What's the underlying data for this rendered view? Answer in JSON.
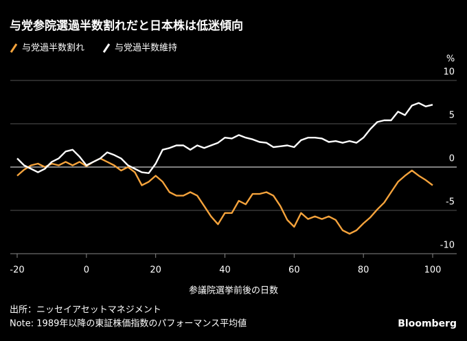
{
  "chart_data": {
    "type": "line",
    "title": "与党参院選過半数割れだと日本株は低迷傾向",
    "x_label": "参議院選挙前後の日数",
    "y_unit": "%",
    "source": "出所：ニッセイアセットマネジメント",
    "note": "Note: 1989年以降の東証株価指数のパフォーマンス平均値",
    "brand": "Bloomberg",
    "x": [
      -20,
      -18,
      -16,
      -14,
      -12,
      -10,
      -8,
      -6,
      -4,
      -2,
      0,
      2,
      4,
      6,
      8,
      10,
      12,
      14,
      16,
      18,
      20,
      22,
      24,
      26,
      28,
      30,
      32,
      34,
      36,
      38,
      40,
      42,
      44,
      46,
      48,
      50,
      52,
      54,
      56,
      58,
      60,
      62,
      64,
      66,
      68,
      70,
      72,
      74,
      76,
      78,
      80,
      82,
      84,
      86,
      88,
      90,
      92,
      94,
      96,
      98,
      100
    ],
    "xlim": [
      -20,
      100
    ],
    "xticks": [
      -20,
      0,
      20,
      40,
      60,
      80,
      100
    ],
    "ylim": [
      -10,
      10
    ],
    "yticks": [
      -10,
      -5,
      0,
      5,
      10
    ],
    "grid": true,
    "series": [
      {
        "name": "与党過半数割れ",
        "color": "#f5a33c",
        "values": [
          -1.0,
          -0.3,
          0.2,
          0.4,
          0,
          0.4,
          0.2,
          0.6,
          0.2,
          0.6,
          0.1,
          0.6,
          1.0,
          0.6,
          0.2,
          -0.4,
          0,
          -0.6,
          -2.1,
          -1.7,
          -1.0,
          -1.7,
          -2.9,
          -3.3,
          -3.3,
          -2.9,
          -3.3,
          -4.5,
          -5.7,
          -6.6,
          -5.3,
          -5.3,
          -3.9,
          -4.3,
          -3.1,
          -3.1,
          -2.9,
          -3.3,
          -4.5,
          -6.1,
          -6.9,
          -5.3,
          -6.0,
          -5.7,
          -6.0,
          -5.7,
          -6.1,
          -7.3,
          -7.7,
          -7.3,
          -6.5,
          -5.8,
          -4.9,
          -4.1,
          -2.9,
          -1.7,
          -1.0,
          -0.4,
          -1.0,
          -1.5,
          -2.1
        ]
      },
      {
        "name": "与党過半数維持",
        "color": "#ffffff",
        "values": [
          1.0,
          0.2,
          -0.2,
          -0.6,
          -0.2,
          0.6,
          1.0,
          1.8,
          2.0,
          1.2,
          0.2,
          0.6,
          1.0,
          1.7,
          1.4,
          1.0,
          0.2,
          -0.2,
          -0.6,
          -0.7,
          0.4,
          2.0,
          2.2,
          2.5,
          2.5,
          2.0,
          2.5,
          2.2,
          2.5,
          2.8,
          3.4,
          3.3,
          3.7,
          3.4,
          3.2,
          2.9,
          2.8,
          2.3,
          2.4,
          2.5,
          2.3,
          3.1,
          3.4,
          3.4,
          3.3,
          2.9,
          3.0,
          2.8,
          3.0,
          2.8,
          3.4,
          4.4,
          5.2,
          5.4,
          5.4,
          6.4,
          6.0,
          7.1,
          7.4,
          7.0,
          7.2
        ]
      }
    ]
  }
}
